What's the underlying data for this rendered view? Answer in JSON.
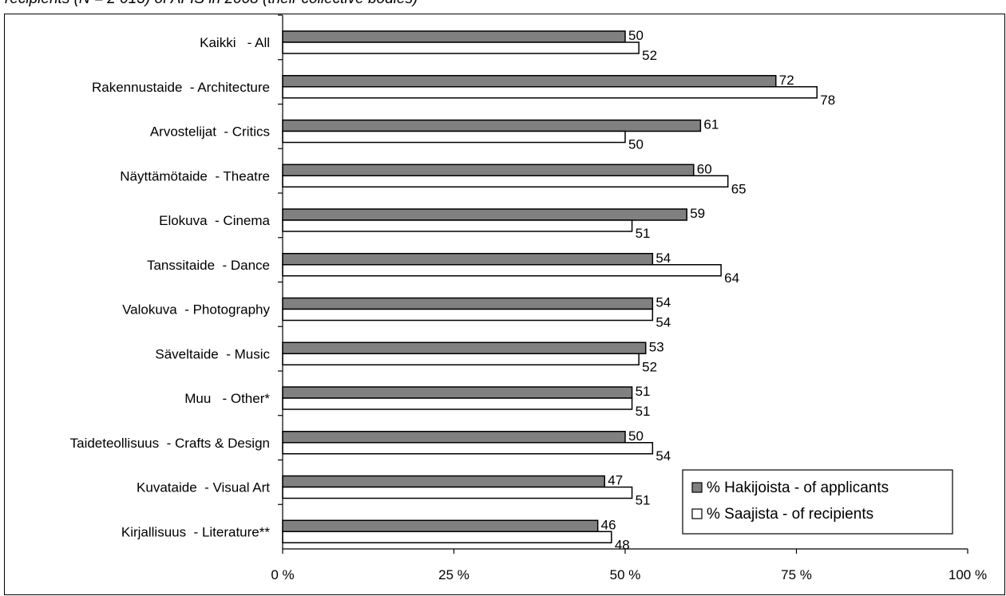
{
  "caption": "recipients (N = 2 013) of AFIS in 2008 (their collective bodies)",
  "chart_data": {
    "type": "bar",
    "orientation": "horizontal",
    "categories": [
      "Kaikki   - All",
      "Rakennustaide  - Architecture",
      "Arvostelijat  - Critics",
      "Näyttämötaide  - Theatre",
      "Elokuva  - Cinema",
      "Tanssitaide  - Dance",
      "Valokuva  - Photography",
      "Säveltaide  - Music",
      "Muu   - Other*",
      "Taideteollisuus  - Crafts & Design",
      "Kuvataide  - Visual Art",
      "Kirjallisuus  - Literature**"
    ],
    "series": [
      {
        "name": "% Hakijoista - of applicants",
        "color": "#808080",
        "values": [
          50,
          72,
          61,
          60,
          59,
          54,
          54,
          53,
          51,
          50,
          47,
          46
        ]
      },
      {
        "name": "% Saajista - of recipients",
        "color": "#ffffff",
        "values": [
          52,
          78,
          50,
          65,
          51,
          64,
          54,
          52,
          51,
          54,
          51,
          48
        ]
      }
    ],
    "xlim": [
      0,
      100
    ],
    "x_ticks": [
      0,
      25,
      50,
      75,
      100
    ],
    "x_tick_labels": [
      "0 %",
      "25 %",
      "50 %",
      "75 %",
      "100 %"
    ],
    "title": "",
    "xlabel": "",
    "ylabel": "",
    "grid": false,
    "legend_position": "bottom-right"
  }
}
